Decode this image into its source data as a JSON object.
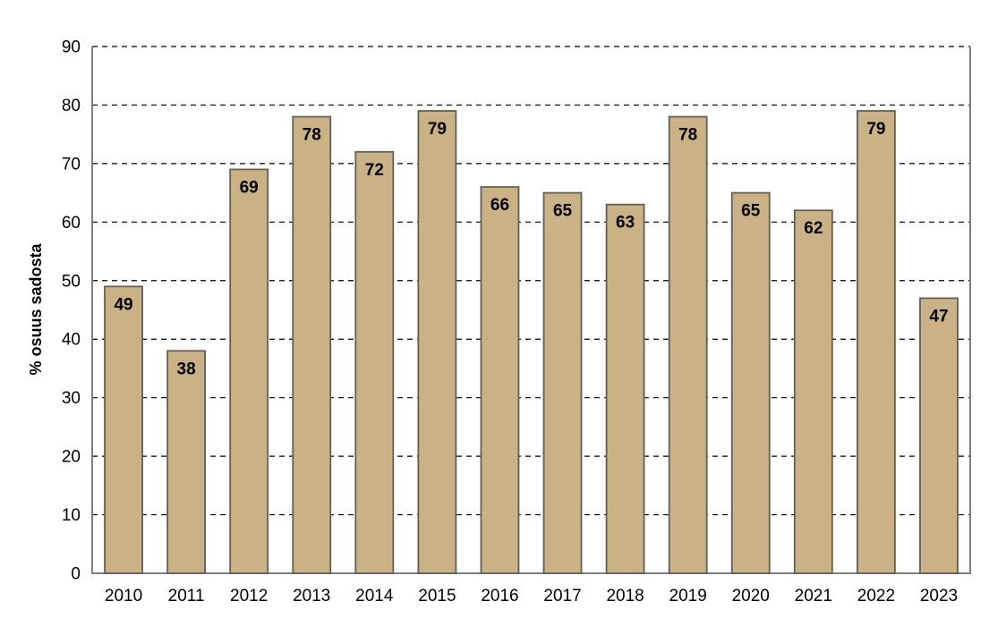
{
  "chart_data": {
    "type": "bar",
    "title": "",
    "xlabel": "",
    "ylabel": "% osuus sadosta",
    "categories": [
      "2010",
      "2011",
      "2012",
      "2013",
      "2014",
      "2015",
      "2016",
      "2017",
      "2018",
      "2019",
      "2020",
      "2021",
      "2022",
      "2023"
    ],
    "values": [
      49,
      38,
      69,
      78,
      72,
      79,
      66,
      65,
      63,
      78,
      65,
      62,
      79,
      47
    ],
    "ylim": [
      0,
      90
    ],
    "ytick_step": 10,
    "yticks": [
      0,
      10,
      20,
      30,
      40,
      50,
      60,
      70,
      80,
      90
    ],
    "grid": "horizontal-dashed",
    "legend_position": "none",
    "bar_value_labels": "inside-top"
  },
  "colors": {
    "bar_fill": "#CAB286",
    "bar_border": "#635F55",
    "axis_line": "#7F7F7F",
    "gridline": "#000000",
    "label_text": "#000000",
    "background": "#FFFFFF"
  }
}
